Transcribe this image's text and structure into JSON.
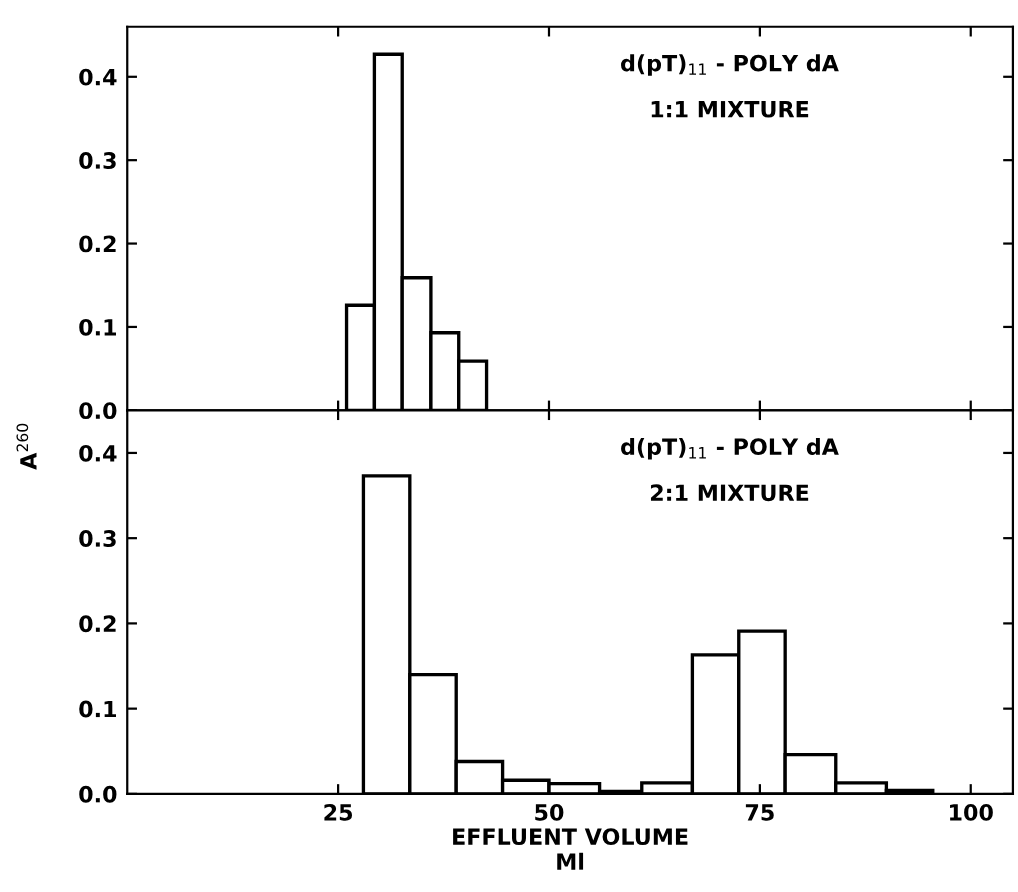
{
  "chart_data": [
    {
      "type": "histogram",
      "annotations": [
        "d(pT)$_{11}$ - POLY dA",
        "1:1 MIXTURE"
      ],
      "ylabel": "A$^{260}$",
      "bins": [
        26,
        29.3,
        32.6,
        36,
        39.3,
        42.6
      ],
      "values": [
        0.126,
        0.427,
        0.159,
        0.093,
        0.059
      ],
      "color": "#ffffff",
      "xlim": [
        0,
        105
      ],
      "xticks": [
        25,
        50,
        75,
        100
      ],
      "ylim": [
        0,
        0.46
      ],
      "yticks": [
        {
          "value": 0,
          "label": "0.0"
        },
        0.1,
        0.2,
        0.3,
        0.4
      ],
      "tick_labels": "y",
      "grid": false
    },
    {
      "type": "histogram",
      "annotations": [
        "d(pT)$_{11}$ - POLY dA",
        "2:1 MIXTURE"
      ],
      "xlabel": "EFFLUENT VOLUME\nMl",
      "bins": [
        28,
        33.5,
        39,
        44.5,
        50,
        56,
        61,
        67,
        72.5,
        78,
        84,
        90,
        95.5
      ],
      "values": [
        0.373,
        0.14,
        0.038,
        0.016,
        0.012,
        0.003,
        0.013,
        0.163,
        0.191,
        0.046,
        0.013,
        0.004
      ],
      "color": "#ffffff",
      "xlim": [
        0,
        105
      ],
      "xticks": [
        25,
        50,
        75,
        100
      ],
      "ylim": [
        0,
        0.45
      ],
      "yticks": [
        {
          "value": 0,
          "label": "0.0"
        },
        0.1,
        0.2,
        0.3,
        0.4
      ],
      "grid": false
    }
  ]
}
